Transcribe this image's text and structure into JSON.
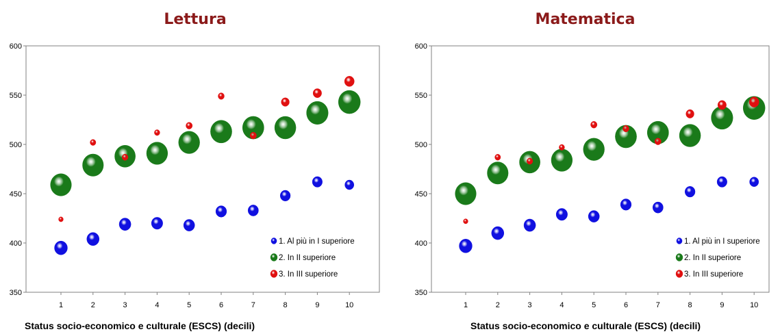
{
  "chart_data": [
    {
      "type": "scatter",
      "title": "Lettura",
      "xlabel": "Status socio-economico e culturale (ESCS) (decili)",
      "ylabel": "",
      "x": [
        1,
        2,
        3,
        4,
        5,
        6,
        7,
        8,
        9,
        10
      ],
      "xticks": [
        "1",
        "2",
        "3",
        "4",
        "5",
        "6",
        "7",
        "8",
        "9",
        "10"
      ],
      "ylim": [
        350,
        600
      ],
      "yticks": [
        "350",
        "400",
        "450",
        "500",
        "550",
        "600"
      ],
      "grid": false,
      "legend_position": "bottom-right",
      "series": [
        {
          "name": "1. Al più in I superiore",
          "color": "#1010e0",
          "values": [
            395,
            404,
            419,
            420,
            418,
            432,
            433,
            448,
            462,
            459
          ],
          "sizes": [
            0.55,
            0.5,
            0.45,
            0.42,
            0.4,
            0.38,
            0.36,
            0.34,
            0.33,
            0.27
          ]
        },
        {
          "name": "2. In II superiore",
          "color": "#1a7a1a",
          "values": [
            459,
            479,
            488,
            491,
            502,
            513,
            517,
            517,
            532,
            543
          ],
          "sizes": [
            0.75,
            0.75,
            0.73,
            0.76,
            0.76,
            0.78,
            0.78,
            0.77,
            0.8,
            0.82
          ]
        },
        {
          "name": "3. In III superiore",
          "color": "#e01010",
          "values": [
            424,
            502,
            487,
            512,
            519,
            549,
            509,
            543,
            552,
            564
          ],
          "sizes": [
            0.08,
            0.12,
            0.13,
            0.11,
            0.15,
            0.14,
            0.15,
            0.24,
            0.27,
            0.35
          ]
        }
      ]
    },
    {
      "type": "scatter",
      "title": "Matematica",
      "xlabel": "Status socio-economico e culturale (ESCS) (decili)",
      "ylabel": "",
      "x": [
        1,
        2,
        3,
        4,
        5,
        6,
        7,
        8,
        9,
        10
      ],
      "xticks": [
        "1",
        "2",
        "3",
        "4",
        "5",
        "6",
        "7",
        "8",
        "9",
        "10"
      ],
      "ylim": [
        350,
        600
      ],
      "yticks": [
        "350",
        "400",
        "450",
        "500",
        "550",
        "600"
      ],
      "grid": false,
      "legend_position": "bottom-right",
      "series": [
        {
          "name": "1. Al più in I superiore",
          "color": "#1010e0",
          "values": [
            397,
            410,
            418,
            429,
            427,
            439,
            436,
            452,
            462,
            462
          ],
          "sizes": [
            0.55,
            0.5,
            0.45,
            0.42,
            0.4,
            0.38,
            0.36,
            0.34,
            0.33,
            0.27
          ]
        },
        {
          "name": "2. In II superiore",
          "color": "#1a7a1a",
          "values": [
            450,
            471,
            482,
            484,
            495,
            508,
            512,
            509,
            527,
            537
          ],
          "sizes": [
            0.75,
            0.75,
            0.73,
            0.76,
            0.76,
            0.78,
            0.78,
            0.77,
            0.8,
            0.82
          ]
        },
        {
          "name": "3. In III superiore",
          "color": "#e01010",
          "values": [
            422,
            487,
            483,
            497,
            520,
            516,
            503,
            531,
            540,
            543
          ],
          "sizes": [
            0.08,
            0.12,
            0.13,
            0.11,
            0.15,
            0.14,
            0.15,
            0.24,
            0.27,
            0.35
          ]
        }
      ]
    }
  ]
}
